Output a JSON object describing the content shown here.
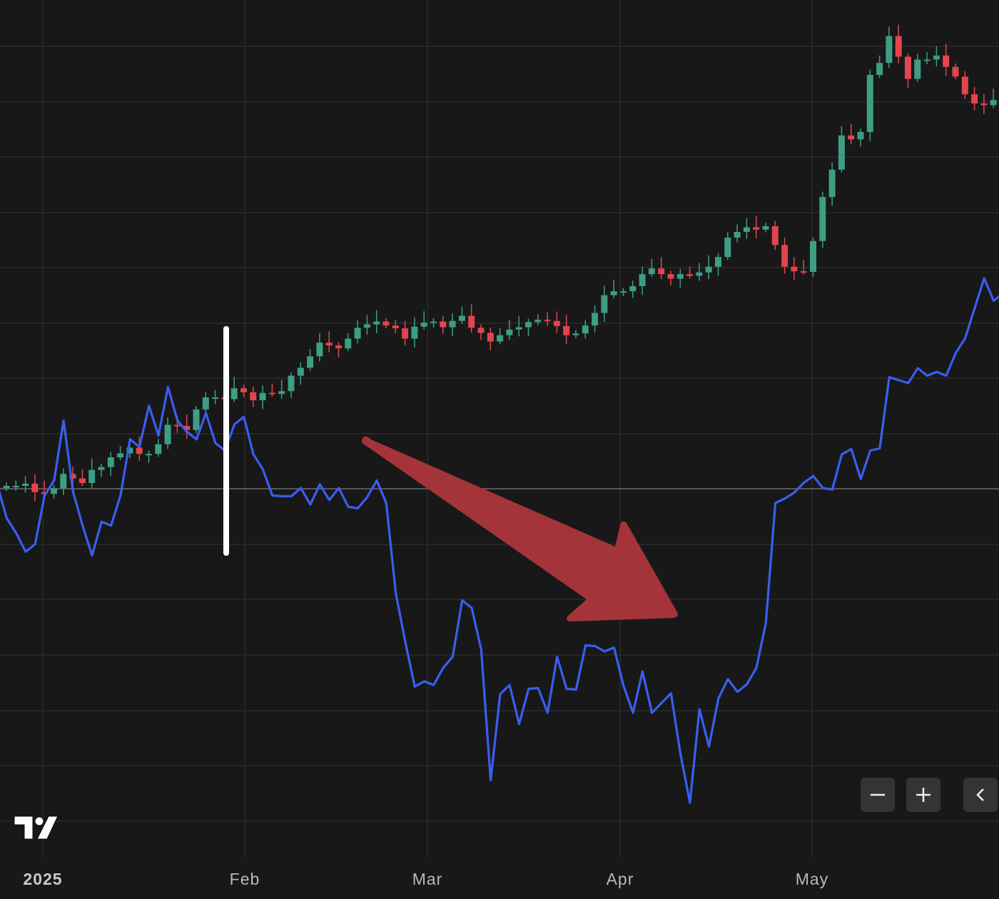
{
  "chart_data": {
    "type": "candlestick",
    "x_axis": {
      "labels": [
        {
          "text": "2025",
          "date": "2025-01-01",
          "bold": true
        },
        {
          "text": "Feb",
          "date": "2025-02-01",
          "bold": false
        },
        {
          "text": "Mar",
          "date": "2025-03-01",
          "bold": false
        },
        {
          "text": "Apr",
          "date": "2025-04-01",
          "bold": false
        },
        {
          "text": "May",
          "date": "2025-05-01",
          "bold": false
        }
      ]
    },
    "grid": true,
    "price_series": {
      "type": "candlestick",
      "up_color": "#3d9e84",
      "down_color": "#e2454f",
      "close": [
        618.5,
        618.5,
        618.9,
        617.4,
        617.1,
        618.1,
        620.6,
        619.8,
        619.0,
        621.3,
        621.8,
        623.5,
        624.2,
        625.2,
        624.1,
        624.1,
        625.8,
        629.2,
        629.0,
        628.3,
        631.9,
        634.0,
        634.0,
        633.7,
        635.6,
        634.9,
        633.5,
        634.8,
        634.6,
        635.1,
        637.8,
        639.2,
        641.2,
        643.6,
        643.1,
        642.6,
        644.3,
        646.2,
        646.8,
        647.3,
        646.6,
        646.1,
        644.3,
        646.4,
        647.1,
        647.3,
        646.3,
        647.4,
        648.3,
        646.2,
        645.3,
        643.8,
        644.9,
        645.9,
        646.3,
        647.2,
        647.6,
        647.4,
        646.5,
        644.9,
        645.2,
        646.6,
        648.8,
        651.9,
        652.6,
        652.6,
        653.5,
        655.6,
        656.6,
        655.6,
        654.8,
        655.6,
        655.3,
        655.9,
        656.9,
        658.6,
        662.0,
        663.0,
        663.8,
        663.4,
        664.0,
        660.7,
        656.9,
        656.1,
        656.0,
        661.4,
        669.1,
        673.9,
        679.9,
        679.2,
        680.5,
        690.5,
        692.6,
        697.3,
        693.7,
        689.8,
        693.2,
        693.2,
        693.9,
        691.9,
        690.2,
        687.1,
        685.5,
        685.2,
        686.1,
        693.6,
        698.7,
        694.4,
        690.7,
        687.0,
        688.5,
        688.3,
        684.5,
        683.3,
        685.7,
        684.1,
        684.5,
        686.1,
        690.8,
        692.5,
        693.3,
        694.1,
        695.2,
        694.0,
        693.1,
        692.6,
        691.6,
        693.6
      ]
    },
    "line_series": {
      "type": "line",
      "color": "#3a5ef0",
      "values": [
        42.5,
        38.0,
        36.0,
        33.5,
        34.5,
        41.0,
        43.0,
        51.0,
        41.5,
        37.0,
        33.0,
        37.5,
        37.0,
        41.0,
        48.5,
        47.5,
        53.0,
        49.0,
        55.5,
        51.0,
        49.5,
        48.5,
        52.0,
        48.0,
        47.0,
        50.5,
        51.5,
        46.5,
        44.5,
        41.0,
        40.9,
        40.9,
        42.0,
        39.8,
        42.5,
        40.4,
        42.0,
        39.5,
        39.3,
        40.8,
        43.0,
        40.0,
        28.0,
        21.5,
        15.5,
        16.2,
        15.7,
        18.0,
        19.5,
        27.0,
        26.0,
        20.5,
        3.0,
        14.5,
        15.7,
        10.5,
        15.2,
        15.3,
        12.0,
        19.5,
        15.2,
        15.1,
        21.0,
        20.9,
        20.2,
        20.7,
        15.6,
        12.0,
        17.5,
        12.0,
        13.3,
        14.6,
        6.5,
        0.0,
        12.5,
        7.5,
        13.9,
        16.5,
        14.8,
        15.8,
        18.0,
        24.0,
        40.0,
        40.6,
        41.4,
        42.7,
        43.6,
        42.0,
        41.8,
        46.5,
        47.2,
        43.2,
        47.0,
        47.3,
        56.8,
        56.4,
        56.0,
        58.0,
        57.0,
        57.5,
        57.0,
        60.0,
        62.0,
        66.0,
        70.0,
        67.0,
        68.0,
        67.5,
        64.0
      ]
    }
  },
  "logo": {
    "name": "tradingview-logo",
    "text": "TV"
  },
  "controls": {
    "zoom_out": {
      "icon": "minus-icon"
    },
    "zoom_in": {
      "icon": "plus-icon"
    },
    "scroll_left": {
      "icon": "chevron-left-icon"
    }
  },
  "annotations": {
    "arrow_color": "#a43439",
    "vertical_marker_color": "#ffffff"
  }
}
